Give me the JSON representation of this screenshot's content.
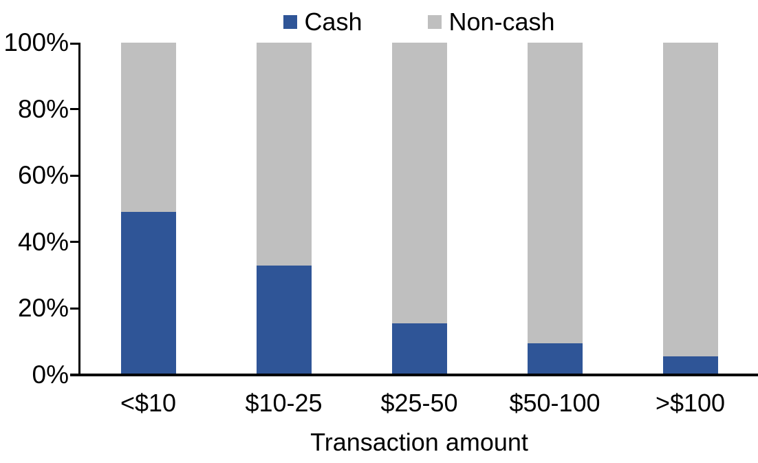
{
  "chart_data": {
    "type": "bar",
    "stacked": true,
    "percent_stacked": true,
    "title": "",
    "xlabel": "Transaction amount",
    "ylabel": "",
    "categories": [
      "<$10",
      "$10-25",
      "$25-50",
      "$50-100",
      ">$100"
    ],
    "series": [
      {
        "name": "Cash",
        "color": "#2F5597",
        "values": [
          49,
          33,
          15.5,
          9.5,
          5.5
        ]
      },
      {
        "name": "Non-cash",
        "color": "#BFBFBF",
        "values": [
          51,
          67,
          84.5,
          90.5,
          94.5
        ]
      }
    ],
    "ylim": [
      0,
      100
    ],
    "yticks": [
      "0%",
      "20%",
      "40%",
      "60%",
      "80%",
      "100%"
    ],
    "grid": false,
    "legend_position": "top"
  },
  "colors": {
    "axis": "#000000",
    "text": "#000000",
    "background": "#FFFFFF"
  }
}
